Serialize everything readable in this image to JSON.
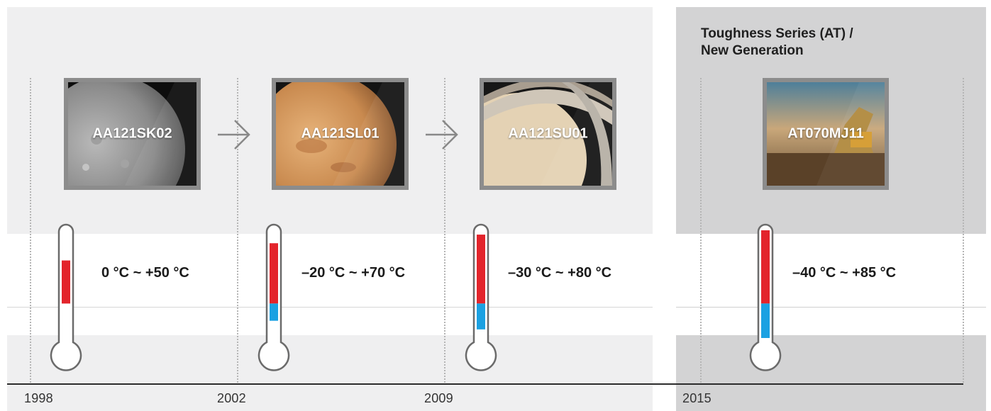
{
  "series_title_line1": "Toughness Series (AT) /",
  "series_title_line2": "New Generation",
  "years": [
    "1998",
    "2002",
    "2009",
    "2015"
  ],
  "products": [
    {
      "code": "AA121SK02",
      "year": "1998",
      "temperature_range": "0 °C ~ +50 °C",
      "image": "mercury-planet",
      "thermometer": {
        "min_c": 0,
        "max_c": 50
      }
    },
    {
      "code": "AA121SL01",
      "year": "2002",
      "temperature_range": "–20 °C ~ +70 °C",
      "image": "mars-planet",
      "thermometer": {
        "min_c": -20,
        "max_c": 70
      }
    },
    {
      "code": "AA121SU01",
      "year": "2009",
      "temperature_range": "–30 °C ~ +80 °C",
      "image": "saturn-planet",
      "thermometer": {
        "min_c": -30,
        "max_c": 80
      }
    },
    {
      "code": "AT070MJ11",
      "year": "2015",
      "temperature_range": "–40 °C ~ +85 °C",
      "image": "excavator-at-sunset",
      "thermometer": {
        "min_c": -40,
        "max_c": 85
      }
    }
  ],
  "colors": {
    "hot": "#e3242b",
    "cold": "#1ba1e2",
    "frame": "#8c8c8c",
    "panel_left": "#efeff0",
    "panel_right": "#d3d3d4"
  },
  "icons": {
    "arrow": "arrow-right-icon",
    "thermometer": "thermometer-icon"
  }
}
